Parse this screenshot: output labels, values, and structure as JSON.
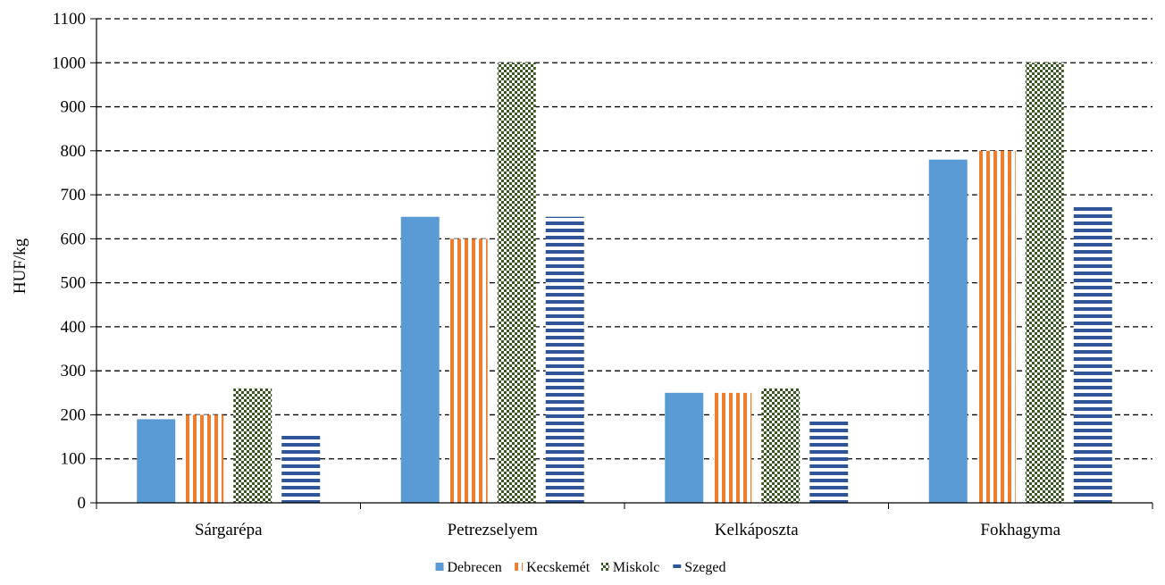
{
  "chart_data": {
    "type": "bar",
    "title": "",
    "xlabel": "",
    "ylabel": "HUF/kg",
    "ylim": [
      0,
      1100
    ],
    "ytick_step": 100,
    "grid": true,
    "legend_position": "bottom",
    "categories": [
      "Sárgarépa",
      "Petrezselyem",
      "Kelkáposzta",
      "Fokhagyma"
    ],
    "series": [
      {
        "name": "Debrecen",
        "values": [
          190,
          650,
          250,
          780
        ],
        "color": "#5b9bd5",
        "pattern": "solid"
      },
      {
        "name": "Kecskemét",
        "values": [
          200,
          600,
          250,
          800
        ],
        "color": "#ed7d31",
        "pattern": "vertical-stripes"
      },
      {
        "name": "Miskolc",
        "values": [
          260,
          1000,
          260,
          1000
        ],
        "color": "#385723",
        "pattern": "checker"
      },
      {
        "name": "Szeged",
        "values": [
          160,
          650,
          190,
          675
        ],
        "color": "#2f5597",
        "pattern": "horizontal-stripes"
      }
    ]
  }
}
